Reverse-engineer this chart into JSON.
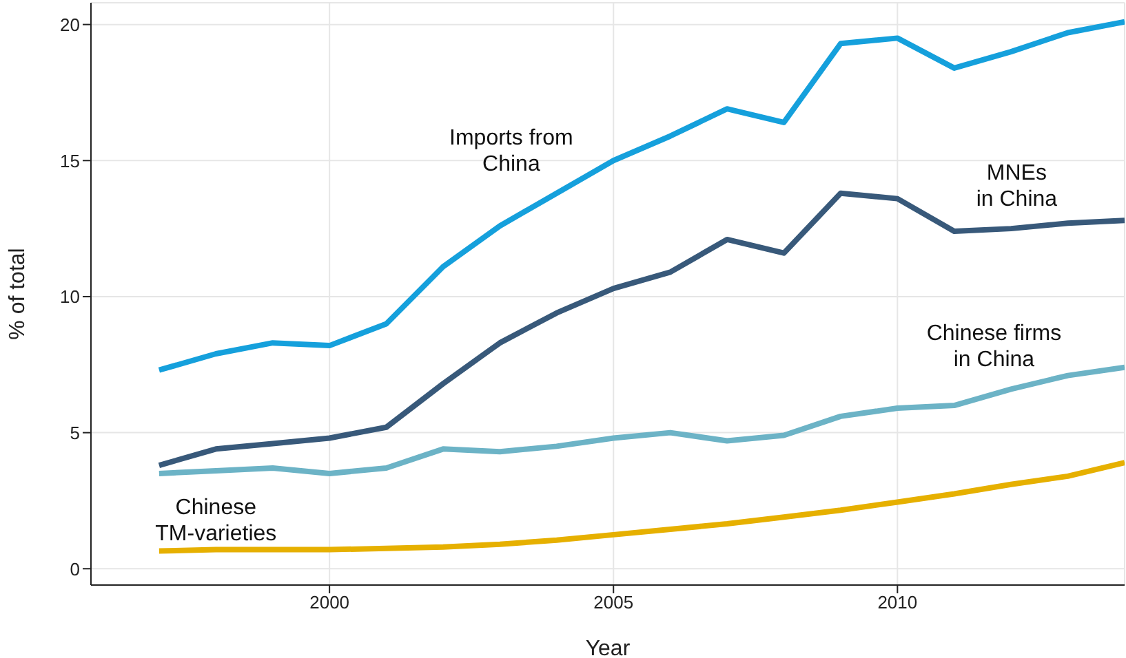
{
  "chart_data": {
    "type": "line",
    "xlabel": "Year",
    "ylabel": "% of total",
    "x": [
      1997,
      1998,
      1999,
      2000,
      2001,
      2002,
      2003,
      2004,
      2005,
      2006,
      2007,
      2008,
      2009,
      2010,
      2011,
      2012,
      2013,
      2014
    ],
    "series": [
      {
        "name": "Imports from\nChina",
        "color": "#15a0dc",
        "values": [
          7.3,
          7.9,
          8.3,
          8.2,
          9.0,
          11.1,
          12.6,
          13.8,
          15.0,
          15.9,
          16.9,
          16.4,
          19.3,
          19.5,
          18.4,
          19.0,
          19.7,
          20.1
        ]
      },
      {
        "name": "MNEs\nin China",
        "color": "#38597a",
        "values": [
          3.8,
          4.4,
          4.6,
          4.8,
          5.2,
          6.8,
          8.3,
          9.4,
          10.3,
          10.9,
          12.1,
          11.6,
          13.8,
          13.6,
          12.4,
          12.5,
          12.7,
          12.8
        ]
      },
      {
        "name": "Chinese firms\nin China",
        "color": "#6cb3c6",
        "values": [
          3.5,
          3.6,
          3.7,
          3.5,
          3.7,
          4.4,
          4.3,
          4.5,
          4.8,
          5.0,
          4.7,
          4.9,
          5.6,
          5.9,
          6.0,
          6.6,
          7.1,
          7.4
        ]
      },
      {
        "name": "Chinese\nTM-varieties",
        "color": "#e6b000",
        "values": [
          0.65,
          0.7,
          0.7,
          0.7,
          0.75,
          0.8,
          0.9,
          1.05,
          1.25,
          1.45,
          1.65,
          1.9,
          2.15,
          2.45,
          2.75,
          3.1,
          3.4,
          3.9
        ]
      }
    ],
    "xlim": [
      1995.8,
      2014
    ],
    "xticks": [
      2000,
      2005,
      2010
    ],
    "ylim": [
      -0.6,
      20.8
    ],
    "yticks": [
      0,
      5,
      10,
      15,
      20
    ],
    "grid": true,
    "marker": "none",
    "line_style": "solid"
  }
}
